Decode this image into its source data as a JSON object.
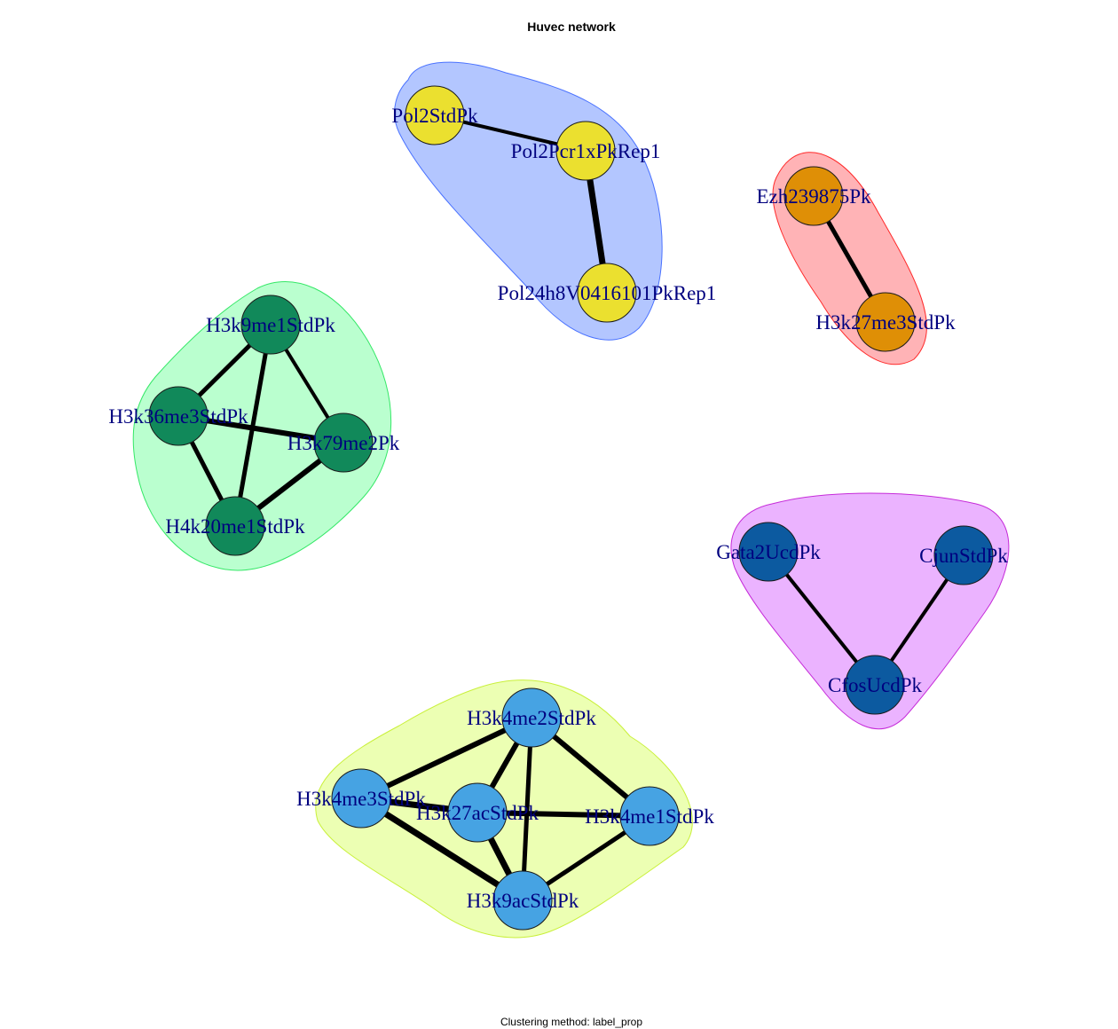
{
  "title": "Huvec network",
  "subtitle": "Clustering method: label_prop",
  "clusters": [
    {
      "id": "pol2",
      "hull_fill": "#b3c6ff",
      "hull_stroke": "#4a72ff",
      "node_color": "#ebe02f",
      "nodes": [
        "Pol2StdPk",
        "Pol2Pcr1xPkRep1",
        "Pol24h8V0416101PkRep1"
      ]
    },
    {
      "id": "ezh2",
      "hull_fill": "#ffb3b6",
      "hull_stroke": "#ff2a2a",
      "node_color": "#df8f06",
      "nodes": [
        "Ezh239875Pk",
        "H3k27me3StdPk"
      ]
    },
    {
      "id": "h3k9me1",
      "hull_fill": "#baffcf",
      "hull_stroke": "#35e867",
      "node_color": "#11895a",
      "nodes": [
        "H3k9me1StdPk",
        "H3k36me3StdPk",
        "H3k79me2Pk",
        "H4k20me1StdPk"
      ]
    },
    {
      "id": "cfos",
      "hull_fill": "#ebb3ff",
      "hull_stroke": "#c52ad9",
      "node_color": "#0c5aa0",
      "nodes": [
        "Gata2UcdPk",
        "CjunStdPk",
        "CfosUcdPk"
      ]
    },
    {
      "id": "h3k4",
      "hull_fill": "#ecffb3",
      "hull_stroke": "#c9f03a",
      "node_color": "#46a3e3",
      "nodes": [
        "H3k4me2StdPk",
        "H3k4me3StdPk",
        "H3k27acStdPk",
        "H3k4me1StdPk",
        "H3k9acStdPk"
      ]
    }
  ],
  "edges": [
    {
      "source": "Pol2StdPk",
      "target": "Pol2Pcr1xPkRep1",
      "weight": 4
    },
    {
      "source": "Pol2Pcr1xPkRep1",
      "target": "Pol24h8V0416101PkRep1",
      "weight": 7
    },
    {
      "source": "Ezh239875Pk",
      "target": "H3k27me3StdPk",
      "weight": 5
    },
    {
      "source": "H3k9me1StdPk",
      "target": "H3k36me3StdPk",
      "weight": 5
    },
    {
      "source": "H3k9me1StdPk",
      "target": "H3k79me2Pk",
      "weight": 4
    },
    {
      "source": "H3k9me1StdPk",
      "target": "H4k20me1StdPk",
      "weight": 5
    },
    {
      "source": "H3k36me3StdPk",
      "target": "H3k79me2Pk",
      "weight": 6
    },
    {
      "source": "H3k36me3StdPk",
      "target": "H4k20me1StdPk",
      "weight": 5
    },
    {
      "source": "H3k79me2Pk",
      "target": "H4k20me1StdPk",
      "weight": 6
    },
    {
      "source": "Gata2UcdPk",
      "target": "CfosUcdPk",
      "weight": 4
    },
    {
      "source": "CjunStdPk",
      "target": "CfosUcdPk",
      "weight": 4
    },
    {
      "source": "H3k4me2StdPk",
      "target": "H3k4me3StdPk",
      "weight": 6
    },
    {
      "source": "H3k4me2StdPk",
      "target": "H3k27acStdPk",
      "weight": 6
    },
    {
      "source": "H3k4me2StdPk",
      "target": "H3k4me1StdPk",
      "weight": 6
    },
    {
      "source": "H3k4me2StdPk",
      "target": "H3k9acStdPk",
      "weight": 5
    },
    {
      "source": "H3k4me3StdPk",
      "target": "H3k27acStdPk",
      "weight": 7
    },
    {
      "source": "H3k4me3StdPk",
      "target": "H3k9acStdPk",
      "weight": 7
    },
    {
      "source": "H3k27acStdPk",
      "target": "H3k4me1StdPk",
      "weight": 6
    },
    {
      "source": "H3k27acStdPk",
      "target": "H3k9acStdPk",
      "weight": 7
    },
    {
      "source": "H3k4me1StdPk",
      "target": "H3k9acStdPk",
      "weight": 5
    }
  ]
}
